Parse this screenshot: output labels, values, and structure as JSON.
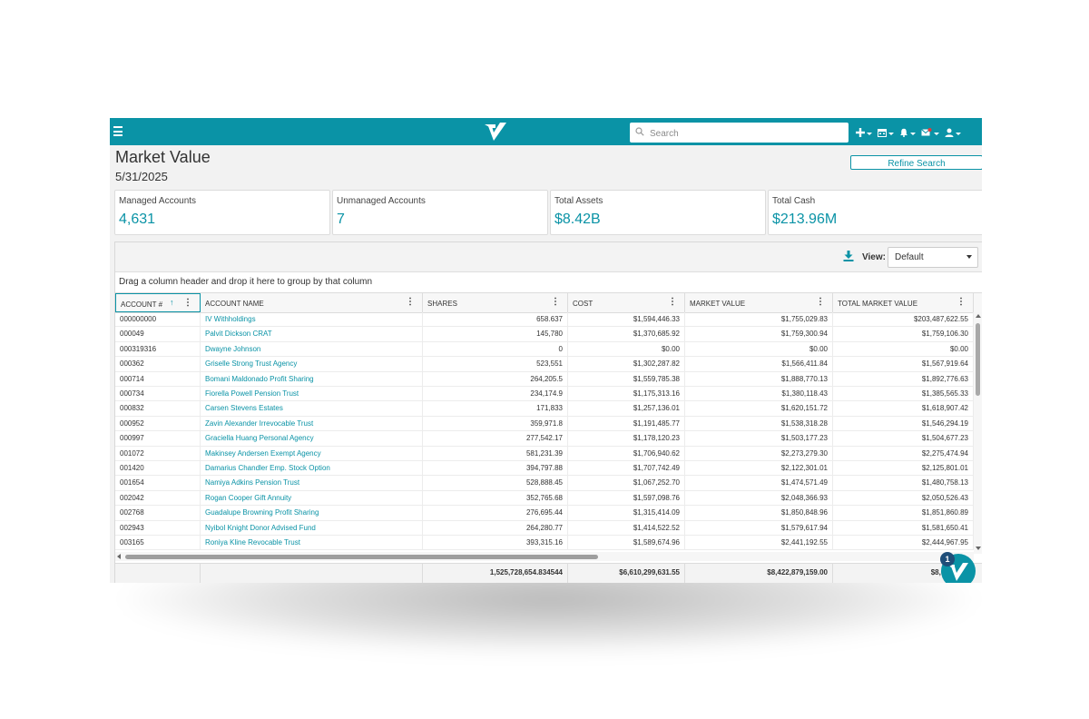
{
  "app": {
    "title": "Market Value",
    "date": "5/31/2025",
    "refine_label": "Refine Search"
  },
  "topbar": {
    "search_placeholder": "Search",
    "icons": [
      "plus-icon",
      "calendar-icon",
      "bell-icon",
      "mail-alert-icon",
      "user-icon"
    ],
    "accent": "#0a93a6"
  },
  "cards": [
    {
      "label": "Managed Accounts",
      "value": "4,631"
    },
    {
      "label": "Unmanaged Accounts",
      "value": "7"
    },
    {
      "label": "Total Assets",
      "value": "$8.42B"
    },
    {
      "label": "Total Cash",
      "value": "$213.96M"
    }
  ],
  "toolbar": {
    "view_label": "View:",
    "view_value": "Default",
    "group_hint": "Drag a column header and drop it here to group by that column"
  },
  "columns": [
    "ACCOUNT #",
    "ACCOUNT NAME",
    "SHARES",
    "COST",
    "MARKET VALUE",
    "TOTAL MARKET VALUE"
  ],
  "rows": [
    [
      "000000000",
      "IV Withholdings",
      "658.637",
      "$1,594,446.33",
      "$1,755,029.83",
      "$203,487,622.55"
    ],
    [
      "000049",
      "Palvit Dickson CRAT",
      "145,780",
      "$1,370,685.92",
      "$1,759,300.94",
      "$1,759,106.30"
    ],
    [
      "000319316",
      "Dwayne Johnson",
      "0",
      "$0.00",
      "$0.00",
      "$0.00"
    ],
    [
      "000362",
      "Griselle Strong Trust Agency",
      "523,551",
      "$1,302,287.82",
      "$1,566,411.84",
      "$1,567,919.64"
    ],
    [
      "000714",
      "Bomani Maldonado Profit Sharing",
      "264,205.5",
      "$1,559,785.38",
      "$1,888,770.13",
      "$1,892,776.63"
    ],
    [
      "000734",
      "Fiorella Powell Pension Trust",
      "234,174.9",
      "$1,175,313.16",
      "$1,380,118.43",
      "$1,385,565.33"
    ],
    [
      "000832",
      "Carsen Stevens Estates",
      "171,833",
      "$1,257,136.01",
      "$1,620,151.72",
      "$1,618,907.42"
    ],
    [
      "000952",
      "Zavin Alexander Irrevocable Trust",
      "359,971.8",
      "$1,191,485.77",
      "$1,538,318.28",
      "$1,546,294.19"
    ],
    [
      "000997",
      "Graciella Huang Personal Agency",
      "277,542.17",
      "$1,178,120.23",
      "$1,503,177.23",
      "$1,504,677.23"
    ],
    [
      "001072",
      "Makinsey Andersen Exempt Agency",
      "581,231.39",
      "$1,706,940.62",
      "$2,273,279.30",
      "$2,275,474.94"
    ],
    [
      "001420",
      "Damarius Chandler Emp. Stock Option",
      "394,797.88",
      "$1,707,742.49",
      "$2,122,301.01",
      "$2,125,801.01"
    ],
    [
      "001654",
      "Namiya Adkins Pension Trust",
      "528,888.45",
      "$1,067,252.70",
      "$1,474,571.49",
      "$1,480,758.13"
    ],
    [
      "002042",
      "Rogan Cooper Gift Annuity",
      "352,765.68",
      "$1,597,098.76",
      "$2,048,366.93",
      "$2,050,526.43"
    ],
    [
      "002768",
      "Guadalupe Browning Profit Sharing",
      "276,695.44",
      "$1,315,414.09",
      "$1,850,848.96",
      "$1,851,860.89"
    ],
    [
      "002943",
      "Nyibol Knight Donor Advised Fund",
      "264,280.77",
      "$1,414,522.52",
      "$1,579,617.94",
      "$1,581,650.41"
    ],
    [
      "003165",
      "Roniya Kline Revocable Trust",
      "393,315.16",
      "$1,589,674.96",
      "$2,441,192.55",
      "$2,444,967.95"
    ]
  ],
  "totals": {
    "shares": "1,525,728,654.834544",
    "cost": "$6,610,299,631.55",
    "market_value": "$8,422,879,159.00",
    "total_market_value": "$8,636,839,"
  },
  "chat": {
    "badge": "1"
  }
}
